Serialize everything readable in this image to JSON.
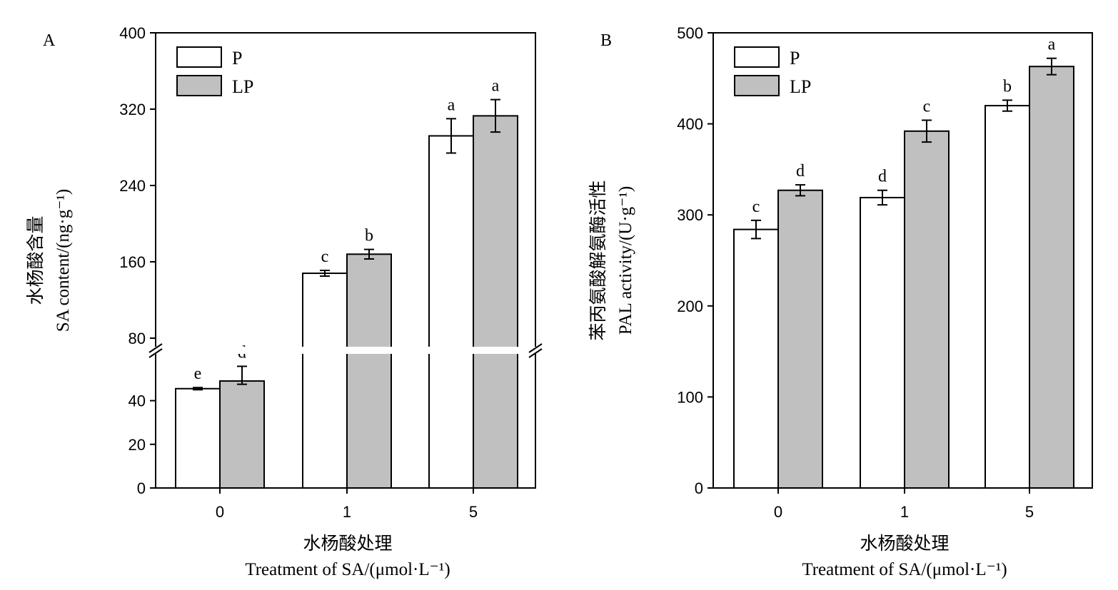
{
  "chart_data": [
    {
      "type": "bar",
      "panel_label": "A",
      "categories": [
        "0",
        "1",
        "5"
      ],
      "series": [
        {
          "name": "P",
          "values": [
            45.5,
            148,
            292
          ],
          "errors": [
            0.5,
            3,
            18
          ],
          "labels": [
            "e",
            "c",
            "a"
          ],
          "color": "#ffffff"
        },
        {
          "name": "LP",
          "values": [
            49,
            168,
            313
          ],
          "errors": [
            1.5,
            5,
            17
          ],
          "labels": [
            "d",
            "b",
            "a"
          ],
          "color": "#c0c0c0"
        }
      ],
      "ylabel_cn": "水杨酸含量",
      "ylabel_en": "SA content/(ng·g⁻¹)",
      "xlabel_cn": "水杨酸处理",
      "xlabel_en": "Treatment of SA/(μmol·L⁻¹)",
      "axis_break": true,
      "ylim_lower": [
        0,
        50
      ],
      "ylim_upper": [
        80,
        400
      ],
      "yticks_lower": [
        0,
        20,
        40
      ],
      "yticks_upper": [
        80,
        160,
        240,
        320,
        400
      ],
      "legend": "top-left"
    },
    {
      "type": "bar",
      "panel_label": "B",
      "categories": [
        "0",
        "1",
        "5"
      ],
      "series": [
        {
          "name": "P",
          "values": [
            284,
            319,
            420
          ],
          "errors": [
            10,
            8,
            6
          ],
          "labels": [
            "c",
            "d",
            "b"
          ],
          "color": "#ffffff"
        },
        {
          "name": "LP",
          "values": [
            327,
            392,
            463
          ],
          "errors": [
            6,
            12,
            9
          ],
          "labels": [
            "d",
            "c",
            "a"
          ],
          "color": "#c0c0c0"
        }
      ],
      "ylabel_cn": "苯丙氨酸解氨酶活性",
      "ylabel_en": "PAL activity/(U·g⁻¹)",
      "xlabel_cn": "水杨酸处理",
      "xlabel_en": "Treatment of SA/(μmol·L⁻¹)",
      "ylim": [
        0,
        500
      ],
      "yticks": [
        0,
        100,
        200,
        300,
        400,
        500
      ],
      "legend": "top-left"
    }
  ]
}
